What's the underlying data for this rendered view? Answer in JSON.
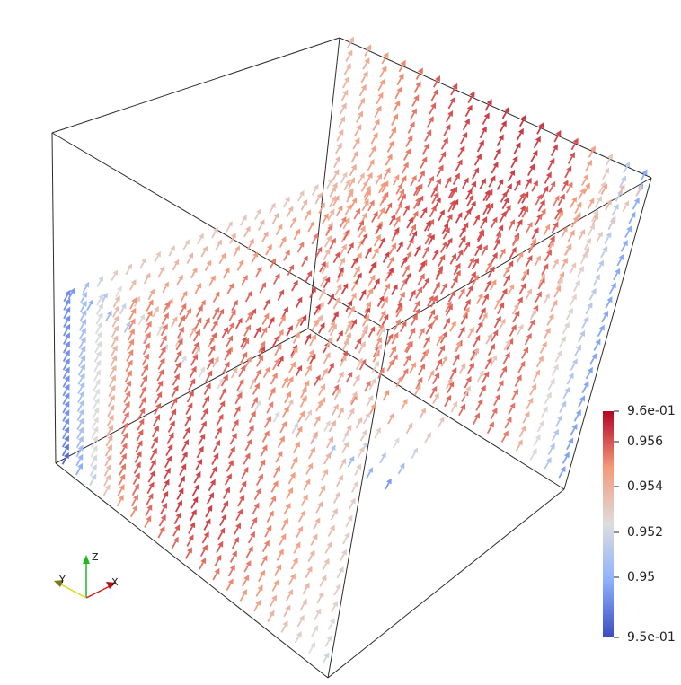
{
  "colorbar": {
    "max_label": "9.6e-01",
    "min_label": "9.5e-01",
    "tick_labels": [
      "0.956",
      "0.954",
      "0.952",
      "0.95"
    ],
    "range": [
      0.95,
      0.96
    ],
    "colormap": [
      "#3b4cc0",
      "#8db0fe",
      "#dddddd",
      "#f49a7b",
      "#b40426"
    ]
  },
  "axes_triad": {
    "x": "X",
    "y": "Y",
    "z": "Z"
  }
}
